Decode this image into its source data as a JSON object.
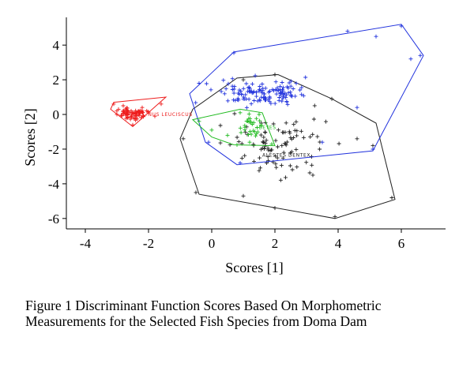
{
  "chart_data": {
    "type": "scatter",
    "title": "",
    "xlabel": "Scores [1]",
    "ylabel": "Scores [2]",
    "xlim": [
      -4.6,
      7.4
    ],
    "ylim": [
      -6.6,
      5.6
    ],
    "xticks": [
      -4,
      -2,
      0,
      2,
      4,
      6
    ],
    "yticks": [
      -6,
      -4,
      -2,
      0,
      2,
      4
    ],
    "xtick_labels": [
      "-4",
      "-2",
      "0",
      "2",
      "4",
      "6"
    ],
    "ytick_labels": [
      "-6",
      "-4",
      "-2",
      "0",
      "2",
      "4"
    ],
    "grid": false,
    "marker": "+",
    "groups": [
      {
        "name": "...NUS LEUCISCUS",
        "color": "#ee1c1c",
        "label_at": [
          -2.2,
          0.0
        ],
        "hull": [
          [
            -3.1,
            0.7
          ],
          [
            -1.45,
            1.0
          ],
          [
            -2.5,
            -0.7
          ],
          [
            -3.2,
            0.3
          ]
        ],
        "center": [
          -2.5,
          0.05
        ],
        "spread": [
          0.38,
          0.22
        ],
        "points": [
          [
            -3.1,
            0.6
          ],
          [
            -2.95,
            0.3
          ],
          [
            -2.8,
            0.5
          ],
          [
            -2.6,
            0.1
          ],
          [
            -2.4,
            -0.2
          ],
          [
            -2.2,
            0.4
          ],
          [
            -2.0,
            0.1
          ],
          [
            -1.8,
            -0.1
          ],
          [
            -1.6,
            0.6
          ],
          [
            -2.5,
            -0.6
          ],
          [
            -3.0,
            0.0
          ]
        ]
      },
      {
        "name": "...BEYES",
        "color": "#22bb22",
        "label_at": [
          1.3,
          -0.75
        ],
        "hull": [
          [
            -0.6,
            -0.3
          ],
          [
            0.9,
            0.3
          ],
          [
            1.6,
            0.1
          ],
          [
            2.0,
            -1.8
          ],
          [
            0.7,
            -1.75
          ],
          [
            0.0,
            -1.3
          ]
        ],
        "center": [
          1.3,
          -0.6
        ],
        "spread": [
          0.3,
          0.35
        ],
        "points": [
          [
            -0.4,
            -0.4
          ],
          [
            0.0,
            -0.9
          ],
          [
            0.5,
            -1.2
          ],
          [
            0.9,
            0.1
          ],
          [
            1.2,
            -1.6
          ],
          [
            1.5,
            0.0
          ],
          [
            1.9,
            -1.7
          ],
          [
            0.8,
            -1.75
          ]
        ]
      },
      {
        "name": "ALESTES DENTEX",
        "color": "#222222",
        "label_at": [
          1.6,
          -2.35
        ],
        "hull": [
          [
            -0.6,
            0.3
          ],
          [
            0.8,
            2.1
          ],
          [
            2.1,
            2.3
          ],
          [
            3.8,
            0.9
          ],
          [
            5.2,
            -0.5
          ],
          [
            5.8,
            -4.9
          ],
          [
            3.9,
            -6.0
          ],
          [
            -0.4,
            -4.6
          ],
          [
            -1.0,
            -1.4
          ]
        ],
        "center": [
          2.1,
          -1.6
        ],
        "spread": [
          1.2,
          1.3
        ],
        "points": [
          [
            -0.9,
            -1.4
          ],
          [
            -0.5,
            -4.5
          ],
          [
            1.0,
            2.0
          ],
          [
            2.0,
            2.3
          ],
          [
            3.8,
            0.9
          ],
          [
            5.1,
            -1.8
          ],
          [
            5.7,
            -4.8
          ],
          [
            3.9,
            -5.9
          ],
          [
            2.0,
            -5.4
          ],
          [
            1.0,
            -4.7
          ],
          [
            4.6,
            -1.4
          ],
          [
            3.2,
            -3.5
          ]
        ]
      },
      {
        "name": "",
        "color": "#2233dd",
        "label_at": null,
        "hull": [
          [
            -0.7,
            1.2
          ],
          [
            0.7,
            3.6
          ],
          [
            6.0,
            5.2
          ],
          [
            6.7,
            3.4
          ],
          [
            5.1,
            -2.1
          ],
          [
            0.8,
            -2.9
          ],
          [
            -0.2,
            -1.6
          ]
        ],
        "center": [
          1.7,
          1.2
        ],
        "spread": [
          1.0,
          0.5
        ],
        "points": [
          [
            -0.4,
            1.8
          ],
          [
            0.7,
            3.55
          ],
          [
            4.3,
            4.8
          ],
          [
            6.0,
            5.1
          ],
          [
            6.6,
            3.4
          ],
          [
            5.2,
            4.5
          ],
          [
            6.3,
            3.2
          ],
          [
            5.1,
            -2.0
          ],
          [
            3.5,
            -1.6
          ],
          [
            0.9,
            -2.8
          ],
          [
            -0.1,
            -1.6
          ],
          [
            4.6,
            0.4
          ]
        ]
      }
    ]
  },
  "caption": {
    "line1": "Figure 1 Discriminant Function Scores Based On Morphometric",
    "line2": "Measurements for the Selected Fish Species from Doma Dam"
  }
}
